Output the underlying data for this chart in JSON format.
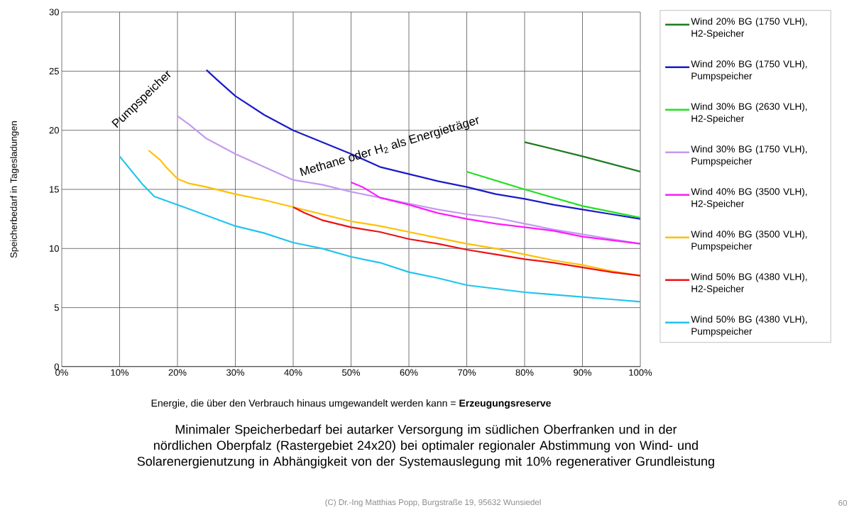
{
  "chart_data": {
    "type": "line",
    "xlabel": "Energie, die über den Verbrauch hinaus umgewandelt werden kann = **Erzeugungsreserve**",
    "ylabel": "Speicherbedarf in Tagesladungen",
    "xlim": [
      0,
      100
    ],
    "ylim": [
      0,
      30
    ],
    "xticks": [
      {
        "value": 0,
        "label": "0%"
      },
      {
        "value": 10,
        "label": "10%"
      },
      {
        "value": 20,
        "label": "20%"
      },
      {
        "value": 30,
        "label": "30%"
      },
      {
        "value": 40,
        "label": "40%"
      },
      {
        "value": 50,
        "label": "50%"
      },
      {
        "value": 60,
        "label": "60%"
      },
      {
        "value": 70,
        "label": "70%"
      },
      {
        "value": 80,
        "label": "80%"
      },
      {
        "value": 90,
        "label": "90%"
      },
      {
        "value": 100,
        "label": "100%"
      }
    ],
    "yticks": [
      0,
      5,
      10,
      15,
      20,
      25,
      30
    ],
    "grid": true,
    "legend": "right",
    "marker": "none",
    "line_style": "solid",
    "series": [
      {
        "name": "Wind 20% BG (1750 VLH), H2-Speicher",
        "color": "#1e7b1e",
        "x": [
          80,
          90,
          100
        ],
        "values": [
          19.0,
          17.8,
          16.5
        ]
      },
      {
        "name": "Wind 20% BG (1750 VLH), Pumpspeicher",
        "color": "#1a1acc",
        "x": [
          25,
          27,
          30,
          35,
          40,
          45,
          50,
          55,
          60,
          65,
          70,
          75,
          80,
          85,
          90,
          95,
          100
        ],
        "values": [
          25.1,
          24.2,
          22.9,
          21.3,
          20.0,
          19.0,
          18.0,
          16.9,
          16.3,
          15.7,
          15.2,
          14.6,
          14.2,
          13.7,
          13.3,
          12.9,
          12.5
        ]
      },
      {
        "name": "Wind 30% BG (2630 VLH), H2-Speicher",
        "color": "#22e022",
        "x": [
          70,
          80,
          90,
          100
        ],
        "values": [
          16.5,
          15.0,
          13.6,
          12.6
        ]
      },
      {
        "name": "Wind 30% BG (1750 VLH), Pumpspeicher",
        "color": "#c39af0",
        "x": [
          20,
          22,
          25,
          30,
          35,
          40,
          45,
          50,
          55,
          60,
          65,
          70,
          75,
          80,
          85,
          90,
          95,
          100
        ],
        "values": [
          21.2,
          20.5,
          19.3,
          18.0,
          16.9,
          15.8,
          15.4,
          14.8,
          14.3,
          13.8,
          13.3,
          12.9,
          12.6,
          12.1,
          11.6,
          11.2,
          10.8,
          10.4
        ]
      },
      {
        "name": "Wind 40% BG (3500 VLH), H2-Speicher",
        "color": "#ff1aff",
        "x": [
          50,
          52,
          55,
          60,
          65,
          70,
          75,
          80,
          85,
          90,
          95,
          100
        ],
        "values": [
          15.6,
          15.2,
          14.3,
          13.7,
          13.0,
          12.5,
          12.1,
          11.8,
          11.5,
          11.0,
          10.7,
          10.4
        ]
      },
      {
        "name": "Wind 40% BG (3500 VLH), Pumpspeicher",
        "color": "#ffc000",
        "x": [
          15,
          17,
          18,
          20,
          22,
          25,
          30,
          35,
          40,
          45,
          50,
          55,
          60,
          65,
          70,
          75,
          80,
          85,
          90,
          95,
          100
        ],
        "values": [
          18.3,
          17.5,
          16.9,
          15.9,
          15.5,
          15.2,
          14.6,
          14.1,
          13.5,
          12.9,
          12.3,
          11.9,
          11.4,
          10.9,
          10.4,
          10.0,
          9.5,
          9.0,
          8.6,
          8.1,
          7.7
        ]
      },
      {
        "name": "Wind 50% BG (4380 VLH), H2-Speicher",
        "color": "#ee1111",
        "x": [
          40,
          42,
          45,
          50,
          55,
          60,
          65,
          70,
          75,
          80,
          85,
          90,
          95,
          100
        ],
        "values": [
          13.5,
          13.0,
          12.4,
          11.8,
          11.4,
          10.8,
          10.4,
          9.9,
          9.5,
          9.1,
          8.8,
          8.4,
          8.0,
          7.7
        ]
      },
      {
        "name": "Wind 50% BG (4380 VLH), Pumpspeicher",
        "color": "#22c4ee",
        "x": [
          10,
          12,
          14,
          16,
          20,
          25,
          30,
          35,
          40,
          45,
          50,
          55,
          60,
          65,
          70,
          75,
          80,
          85,
          90,
          95,
          100
        ],
        "values": [
          17.8,
          16.6,
          15.4,
          14.4,
          13.7,
          12.8,
          11.9,
          11.3,
          10.5,
          10.0,
          9.3,
          8.8,
          8.0,
          7.5,
          6.9,
          6.6,
          6.3,
          6.1,
          5.9,
          5.7,
          5.5
        ]
      }
    ],
    "annotations": [
      "Pumpspeicher",
      "Methane oder H$_{2}$ als Energieträger",
      "Minimaler Speicherbedarf bei autarker Versorgung im südlichen Oberfranken und in der nördlichen Oberpfalz (Rastergebiet 24x20) bei optimaler regionaler Abstimmung von Wind- und Solarenergienutzung in Abhängigkeit von der Systemauslegung mit 10% regenerativer Grundleistung",
      "(C) Dr.-Ing Matthias Popp, Burgstraße 19, 95632 Wunsiedel",
      "60"
    ]
  }
}
